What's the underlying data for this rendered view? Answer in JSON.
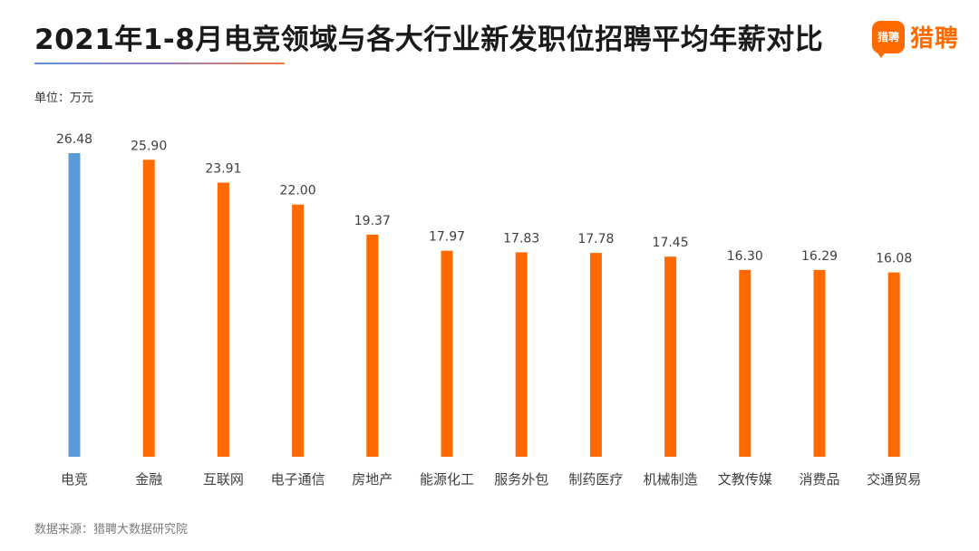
{
  "header": {
    "title": "2021年1-8月电竞领域与各大行业新发职位招聘平均年薪对比"
  },
  "logo": {
    "mark_text": "猎聘",
    "brand_text": "猎聘",
    "color": "#ff6a00"
  },
  "unit_label": "单位：万元",
  "source": "数据来源：猎聘大数据研究院",
  "chart_data": {
    "type": "bar",
    "title": "2021年1-8月电竞领域与各大行业新发职位招聘平均年薪对比",
    "xlabel": "",
    "ylabel": "",
    "unit": "万元",
    "categories": [
      "电竞",
      "金融",
      "互联网",
      "电子通信",
      "房地产",
      "能源化工",
      "服务外包",
      "制药医疗",
      "机械制造",
      "文教传媒",
      "消费品",
      "交通贸易"
    ],
    "values": [
      26.48,
      25.9,
      23.91,
      22.0,
      19.37,
      17.97,
      17.83,
      17.78,
      17.45,
      16.3,
      16.29,
      16.08
    ],
    "value_labels": [
      "26.48",
      "25.90",
      "23.91",
      "22.00",
      "19.37",
      "17.97",
      "17.83",
      "17.78",
      "17.45",
      "16.30",
      "16.29",
      "16.08"
    ],
    "ylim": [
      0,
      26.48
    ],
    "grid": false,
    "colors": {
      "highlight": "#5b9bd5",
      "default": "#ff6a00"
    },
    "highlight_index": 0
  }
}
